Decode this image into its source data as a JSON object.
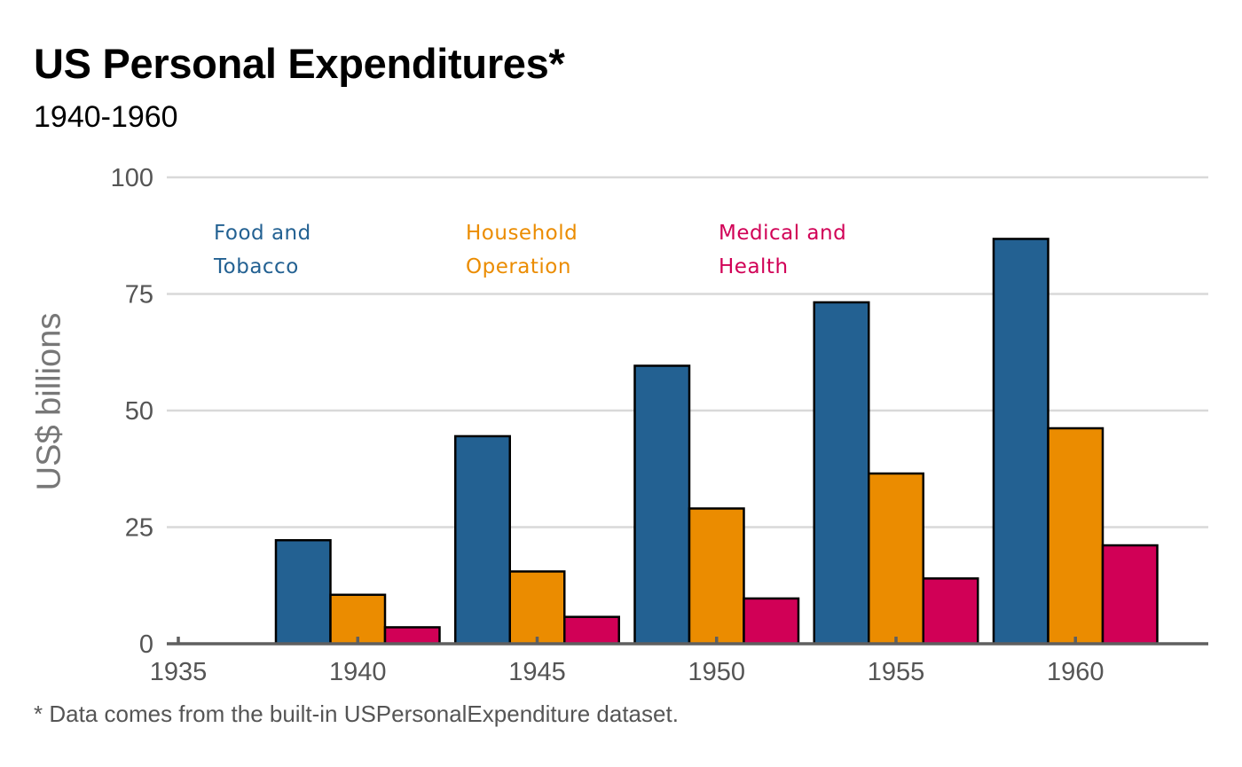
{
  "chart_data": {
    "type": "bar",
    "title": "US Personal Expenditures*",
    "subtitle": "1940-1960",
    "caption": "* Data comes from the built-in USPersonalExpenditure dataset.",
    "xlabel": "",
    "ylabel": "US$ billions",
    "x_ticks": [
      1935,
      1940,
      1945,
      1950,
      1955,
      1960
    ],
    "xlim": [
      1935,
      1964
    ],
    "y_ticks": [
      0,
      25,
      50,
      75,
      100
    ],
    "ylim": [
      0,
      100
    ],
    "grid": "horizontal",
    "legend_placement": "top-left (direct labels)",
    "categories": [
      1940,
      1945,
      1950,
      1955,
      1960
    ],
    "series": [
      {
        "name": "Food and Tobacco",
        "label_lines": [
          "Food and",
          "Tobacco"
        ],
        "color": "#236192",
        "values": [
          22.2,
          44.5,
          59.6,
          73.2,
          86.8
        ]
      },
      {
        "name": "Household Operation",
        "label_lines": [
          "Household",
          "Operation"
        ],
        "color": "#EB8C00",
        "values": [
          10.5,
          15.5,
          29.0,
          36.5,
          46.2
        ]
      },
      {
        "name": "Medical and Health",
        "label_lines": [
          "Medical and",
          "Health"
        ],
        "color": "#D10056",
        "values": [
          3.53,
          5.76,
          9.71,
          14.0,
          21.1
        ]
      }
    ]
  }
}
